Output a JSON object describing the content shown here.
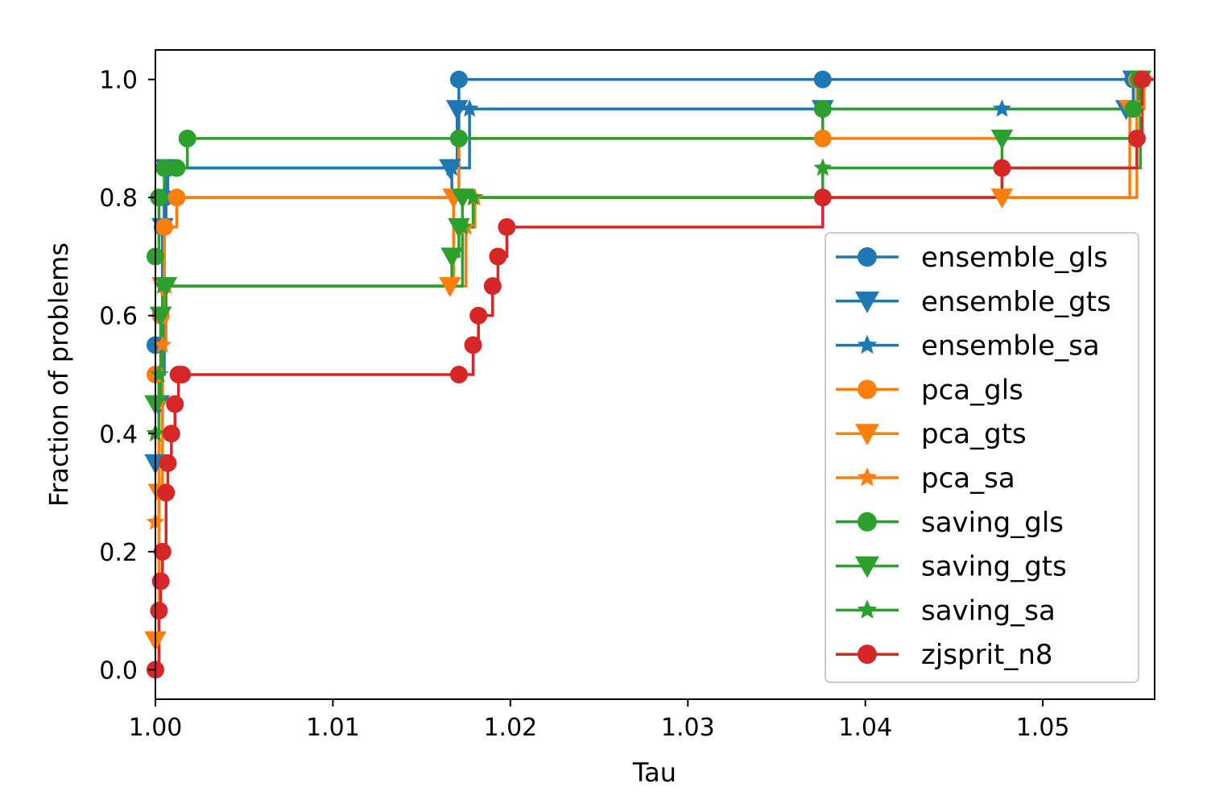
{
  "chart_data": {
    "type": "line",
    "title": "",
    "xlabel": "Tau",
    "ylabel": "Fraction of problems",
    "xlim": [
      1.0,
      1.0563
    ],
    "ylim": [
      -0.05,
      1.05
    ],
    "xticks": [
      1.0,
      1.01,
      1.02,
      1.03,
      1.04,
      1.05
    ],
    "xtick_labels": [
      "1.00",
      "1.01",
      "1.02",
      "1.03",
      "1.04",
      "1.05"
    ],
    "yticks": [
      0.0,
      0.2,
      0.4,
      0.6,
      0.8,
      1.0
    ],
    "ytick_labels": [
      "0.0",
      "0.2",
      "0.4",
      "0.6",
      "0.8",
      "1.0"
    ],
    "grid": false,
    "legend_position": "lower-right",
    "step": "post",
    "series": [
      {
        "name": "ensemble_gls",
        "color": "#1f77b4",
        "marker": "circle",
        "x": [
          1.0,
          1.0003,
          1.0004,
          1.0005,
          1.0007,
          1.0171,
          1.0376,
          1.0551
        ],
        "y": [
          0.55,
          0.6,
          0.75,
          0.8,
          0.85,
          1.0,
          1.0,
          1.0
        ]
      },
      {
        "name": "ensemble_gts",
        "color": "#1f77b4",
        "marker": "triangle-down",
        "x": [
          1.0,
          1.0002,
          1.0004,
          1.0006,
          1.0166,
          1.017,
          1.0376,
          1.0547,
          1.0551
        ],
        "y": [
          0.35,
          0.45,
          0.75,
          0.85,
          0.85,
          0.95,
          0.95,
          0.95,
          1.0
        ]
      },
      {
        "name": "ensemble_sa",
        "color": "#1f77b4",
        "marker": "star",
        "x": [
          1.0,
          1.0002,
          1.0005,
          1.0167,
          1.0177,
          1.0477,
          1.0551
        ],
        "y": [
          0.4,
          0.5,
          0.8,
          0.85,
          0.95,
          0.95,
          1.0
        ]
      },
      {
        "name": "pca_gls",
        "color": "#ff7f0e",
        "marker": "circle",
        "x": [
          1.0,
          1.0003,
          1.0005,
          1.0012,
          1.0171,
          1.0376,
          1.0553
        ],
        "y": [
          0.5,
          0.6,
          0.75,
          0.8,
          0.9,
          0.9,
          1.0
        ]
      },
      {
        "name": "pca_gts",
        "color": "#ff7f0e",
        "marker": "triangle-down",
        "x": [
          1.0,
          1.0002,
          1.0004,
          1.0166,
          1.0168,
          1.0477,
          1.0549,
          1.0555
        ],
        "y": [
          0.05,
          0.3,
          0.65,
          0.65,
          0.8,
          0.8,
          0.95,
          1.0
        ]
      },
      {
        "name": "pca_sa",
        "color": "#ff7f0e",
        "marker": "star",
        "x": [
          1.0,
          1.0002,
          1.0004,
          1.0006,
          1.0175,
          1.018,
          1.0553,
          1.0557
        ],
        "y": [
          0.25,
          0.45,
          0.55,
          0.65,
          0.75,
          0.8,
          0.95,
          1.0
        ]
      },
      {
        "name": "saving_gls",
        "color": "#2ca02c",
        "marker": "circle",
        "x": [
          1.0,
          1.0002,
          1.0005,
          1.0012,
          1.0018,
          1.0171,
          1.0376,
          1.0551,
          1.0554
        ],
        "y": [
          0.7,
          0.8,
          0.85,
          0.85,
          0.9,
          0.9,
          0.95,
          0.95,
          1.0
        ]
      },
      {
        "name": "saving_gts",
        "color": "#2ca02c",
        "marker": "triangle-down",
        "x": [
          1.0,
          1.0003,
          1.0006,
          1.0167,
          1.0171,
          1.0173,
          1.0477,
          1.0555
        ],
        "y": [
          0.45,
          0.6,
          0.65,
          0.7,
          0.75,
          0.8,
          0.9,
          1.0
        ]
      },
      {
        "name": "saving_sa",
        "color": "#2ca02c",
        "marker": "star",
        "x": [
          1.0,
          1.0002,
          1.0004,
          1.0173,
          1.0179,
          1.0376,
          1.0555
        ],
        "y": [
          0.4,
          0.5,
          0.65,
          0.75,
          0.8,
          0.85,
          1.0
        ]
      },
      {
        "name": "zjsprit_n8",
        "color": "#d62728",
        "marker": "circle",
        "x": [
          1.0,
          1.0002,
          1.0003,
          1.0004,
          1.0006,
          1.0007,
          1.0009,
          1.0011,
          1.0013,
          1.0015,
          1.0171,
          1.0179,
          1.0182,
          1.019,
          1.0193,
          1.0198,
          1.0376,
          1.0477,
          1.0553,
          1.0556
        ],
        "y": [
          0.0,
          0.1,
          0.15,
          0.2,
          0.3,
          0.35,
          0.4,
          0.45,
          0.5,
          0.5,
          0.5,
          0.55,
          0.6,
          0.65,
          0.7,
          0.75,
          0.8,
          0.85,
          0.9,
          1.0
        ]
      }
    ]
  }
}
